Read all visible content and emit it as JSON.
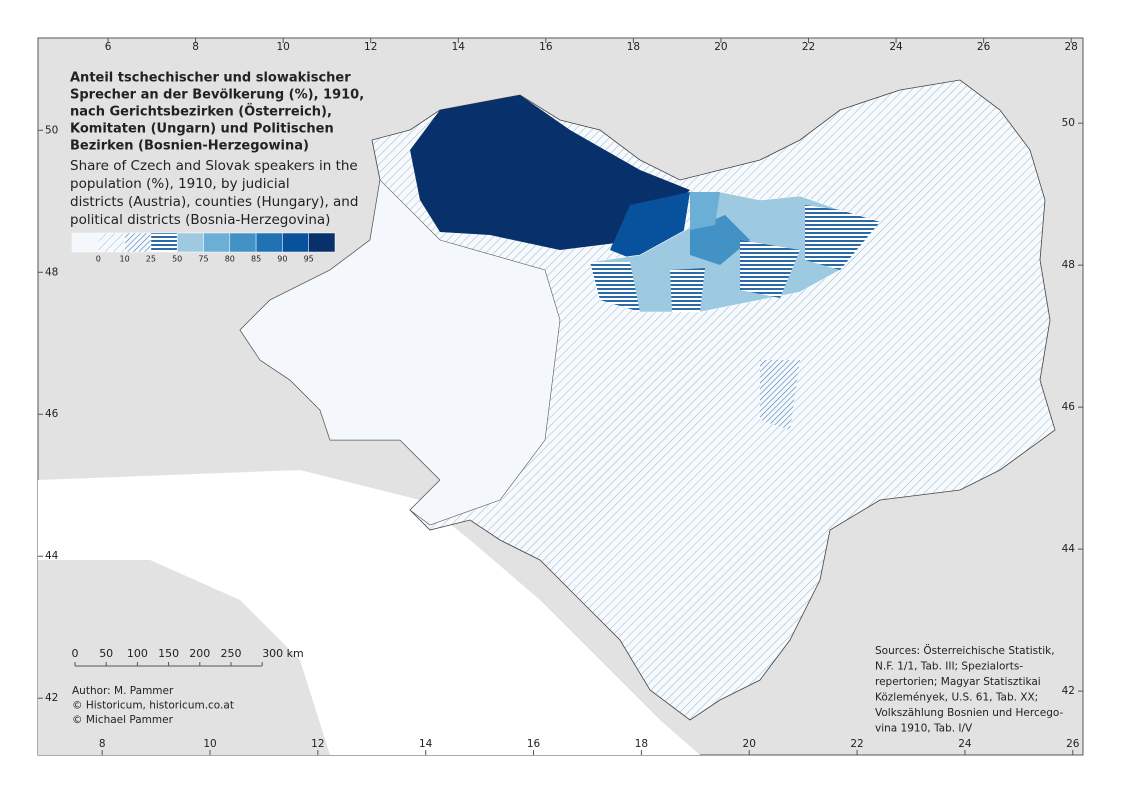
{
  "map": {
    "title_de": [
      "Anteil tschechischer und slowakischer",
      "Sprecher an der Bevölkerung (%), 1910,",
      "nach Gerichtsbezirken (Österreich),",
      "Komitaten (Ungarn) und Politischen",
      "Bezirken (Bosnien-Herzegowina)"
    ],
    "title_en": [
      "Share of Czech and Slovak speakers in the",
      "population (%), 1910, by judicial",
      "districts (Austria), counties (Hungary), and",
      "political districts (Bosnia-Herzegovina)"
    ],
    "legend": {
      "fills": [
        "#f4f8fc",
        "pattern:diag",
        "pattern:diag-dense",
        "pattern:stripes",
        "#9ecae1",
        "#6baed6",
        "#4292c6",
        "#2171b5",
        "#08519c",
        "#08306b"
      ],
      "breaks": [
        0,
        10,
        25,
        50,
        75,
        80,
        85,
        90,
        95
      ]
    },
    "frame": {
      "top_lim": [
        4.4,
        28.27
      ],
      "top_ticks": [
        6,
        8,
        10,
        12,
        14,
        16,
        18,
        20,
        22,
        24,
        26,
        28
      ],
      "bottom_lim": [
        6.81,
        26.19
      ],
      "bottom_ticks": [
        8,
        10,
        12,
        14,
        16,
        18,
        20,
        22,
        24,
        26
      ],
      "left_lim": [
        51.3,
        41.2
      ],
      "left_ticks": [
        50,
        48,
        46,
        44,
        42
      ],
      "right_lim": [
        51.2,
        41.1
      ],
      "right_ticks": [
        50,
        48,
        46,
        44,
        42
      ]
    },
    "scale_bar": [
      "0",
      "50",
      "100",
      "150",
      "200",
      "250",
      "300 km"
    ],
    "author": [
      "Author: M. Pammer",
      "© Historicum, historicum.co.at",
      "© Michael Pammer"
    ],
    "sources": [
      "Sources: Österreichische Statistik,",
      "N.F. 1/1, Tab. III; Spezialorts-",
      "repertorien; Magyar Statisztikai",
      "Közlemények, U.S. 61, Tab. XX;",
      "Volkszählung Bosnien und Hercego-",
      "vina 1910, Tab. I/V"
    ]
  }
}
